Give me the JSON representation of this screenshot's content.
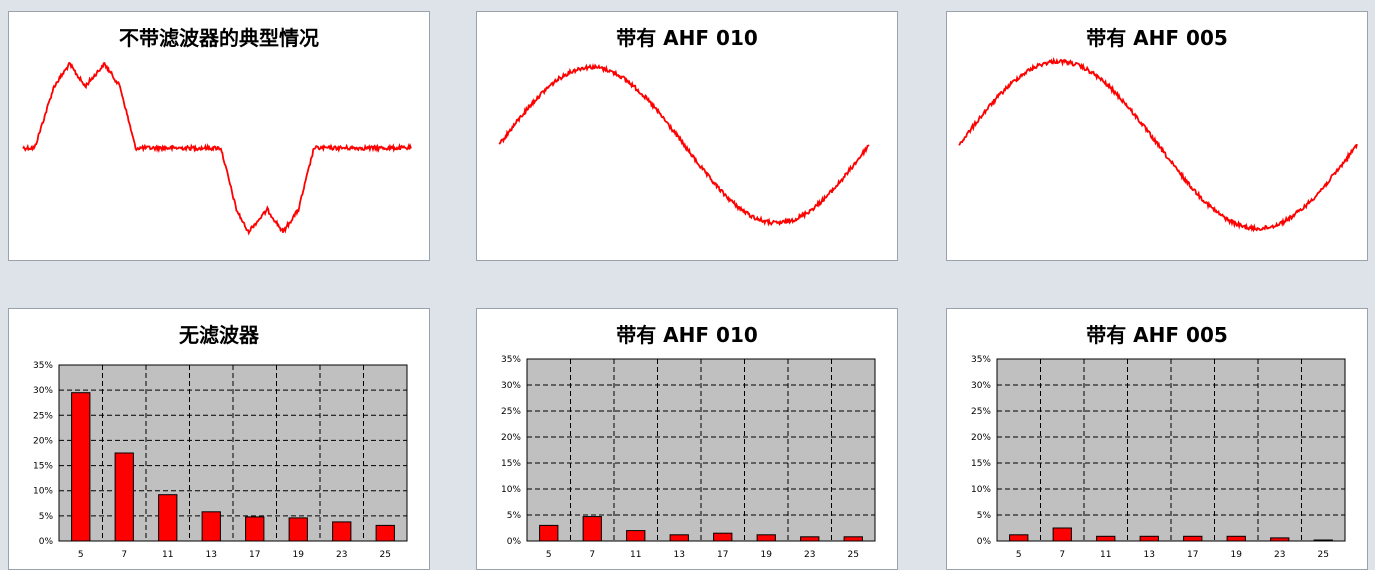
{
  "colors": {
    "wave": "#ff0000",
    "bar": "#ff0000",
    "plot_bg": "#c0c0c0",
    "page_bg": "#dde3e8"
  },
  "chart_data": [
    {
      "type": "line",
      "title": "不带滤波器的典型情况",
      "description": "distorted current waveform without filter",
      "x": [
        0,
        0.03,
        0.08,
        0.12,
        0.16,
        0.21,
        0.25,
        0.29,
        0.34,
        0.38,
        0.42,
        0.47,
        0.51,
        0.55,
        0.58,
        0.63,
        0.67,
        0.71,
        0.75,
        0.79,
        0.84,
        0.88,
        0.92,
        0.96,
        1.0
      ],
      "y": [
        0.0,
        0.0,
        0.55,
        0.75,
        0.55,
        0.75,
        0.55,
        0.0,
        0.0,
        0.0,
        0.0,
        0.0,
        0.0,
        -0.55,
        -0.75,
        -0.55,
        -0.75,
        -0.55,
        0.0,
        0.0,
        0.0,
        0.0,
        0.0,
        0.0,
        0.0
      ]
    },
    {
      "type": "line",
      "title": "带有 AHF 010",
      "x": [
        0,
        0.1,
        0.2,
        0.3,
        0.4,
        0.5,
        0.6,
        0.7,
        0.8,
        0.9,
        1.0
      ],
      "y": [
        0.0,
        0.59,
        0.95,
        0.95,
        0.59,
        0.0,
        -0.59,
        -0.95,
        -0.95,
        -0.59,
        0.0
      ]
    },
    {
      "type": "line",
      "title": "带有 AHF 005",
      "x": [
        0,
        0.1,
        0.2,
        0.3,
        0.4,
        0.5,
        0.6,
        0.7,
        0.8,
        0.9,
        1.0
      ],
      "y": [
        0.0,
        0.59,
        0.95,
        0.95,
        0.59,
        0.0,
        -0.59,
        -0.95,
        -0.95,
        -0.59,
        0.0
      ]
    },
    {
      "type": "bar",
      "title": "无滤波器",
      "categories": [
        "5",
        "7",
        "11",
        "13",
        "17",
        "19",
        "23",
        "25"
      ],
      "values": [
        29.5,
        17.5,
        9.2,
        5.8,
        4.8,
        4.6,
        3.8,
        3.1
      ],
      "ylim": [
        0,
        35
      ],
      "yticks": [
        "0%",
        "5%",
        "10%",
        "15%",
        "20%",
        "25%",
        "30%",
        "35%"
      ],
      "grid": true
    },
    {
      "type": "bar",
      "title": "带有 AHF 010",
      "categories": [
        "5",
        "7",
        "11",
        "13",
        "17",
        "19",
        "23",
        "25"
      ],
      "values": [
        3.0,
        4.7,
        2.0,
        1.2,
        1.5,
        1.2,
        0.8,
        0.8
      ],
      "ylim": [
        0,
        35
      ],
      "yticks": [
        "0%",
        "5%",
        "10%",
        "15%",
        "20%",
        "25%",
        "30%",
        "35%"
      ],
      "grid": true
    },
    {
      "type": "bar",
      "title": "带有 AHF 005",
      "categories": [
        "5",
        "7",
        "11",
        "13",
        "17",
        "19",
        "23",
        "25"
      ],
      "values": [
        1.2,
        2.5,
        0.9,
        0.9,
        0.9,
        0.9,
        0.6,
        0.2
      ],
      "ylim": [
        0,
        35
      ],
      "yticks": [
        "0%",
        "5%",
        "10%",
        "15%",
        "20%",
        "25%",
        "30%",
        "35%"
      ],
      "grid": true
    }
  ]
}
